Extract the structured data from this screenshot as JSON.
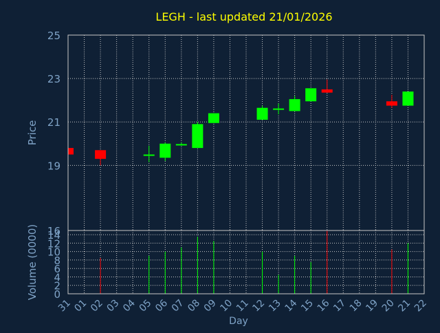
{
  "chart_data": {
    "type": "candlestick",
    "title": "LEGH - last updated 21/01/2026",
    "colors": {
      "background": "#0f2035",
      "title": "#ffff00",
      "axis_text": "#7fa3c7",
      "grid": "#c8c8c8",
      "up": "#00ff00",
      "down": "#ff0000"
    },
    "price_panel": {
      "ylabel": "Price",
      "ylim": [
        16,
        25
      ],
      "yticks": [
        "25",
        "23",
        "21",
        "19",
        "16"
      ],
      "ytick_values": [
        25,
        23,
        21,
        19,
        16
      ],
      "grid": true
    },
    "volume_panel": {
      "ylabel": "Volume (0000)",
      "ylim": [
        0,
        15
      ],
      "yticks": [
        "14",
        "12",
        "10",
        "8",
        "6",
        "4",
        "2",
        "0"
      ],
      "ytick_values": [
        14,
        12,
        10,
        8,
        6,
        4,
        2,
        0
      ],
      "grid": true
    },
    "xlabel": "Day",
    "x_categories": [
      "31",
      "01",
      "02",
      "03",
      "04",
      "05",
      "06",
      "07",
      "08",
      "09",
      "10",
      "11",
      "12",
      "13",
      "14",
      "15",
      "16",
      "17",
      "18",
      "19",
      "20",
      "21",
      "22"
    ],
    "candles": [
      {
        "day": "31",
        "idx": 0,
        "open": 19.8,
        "close": 19.5,
        "high": 19.8,
        "low": 19.5,
        "volume": 0
      },
      {
        "day": "02",
        "idx": 2,
        "open": 19.7,
        "close": 19.3,
        "high": 19.7,
        "low": 19.0,
        "volume": 8.5
      },
      {
        "day": "05",
        "idx": 5,
        "open": 19.45,
        "close": 19.5,
        "high": 19.9,
        "low": 19.15,
        "volume": 9.0
      },
      {
        "day": "06",
        "idx": 6,
        "open": 19.35,
        "close": 20.0,
        "high": 20.05,
        "low": 19.2,
        "volume": 10.0
      },
      {
        "day": "07",
        "idx": 7,
        "open": 19.95,
        "close": 19.98,
        "high": 20.05,
        "low": 19.9,
        "volume": 11.0
      },
      {
        "day": "08",
        "idx": 8,
        "open": 19.8,
        "close": 20.9,
        "high": 21.0,
        "low": 19.8,
        "volume": 13.5
      },
      {
        "day": "09",
        "idx": 9,
        "open": 20.95,
        "close": 21.4,
        "high": 21.4,
        "low": 20.95,
        "volume": 12.5
      },
      {
        "day": "12",
        "idx": 12,
        "open": 21.1,
        "close": 21.65,
        "high": 21.75,
        "low": 21.1,
        "volume": 10.0
      },
      {
        "day": "13",
        "idx": 13,
        "open": 21.6,
        "close": 21.62,
        "high": 21.85,
        "low": 21.35,
        "volume": 4.5
      },
      {
        "day": "14",
        "idx": 14,
        "open": 21.5,
        "close": 22.05,
        "high": 22.2,
        "low": 21.5,
        "volume": 9.0
      },
      {
        "day": "15",
        "idx": 15,
        "open": 21.95,
        "close": 22.55,
        "high": 22.55,
        "low": 21.95,
        "volume": 7.5
      },
      {
        "day": "16",
        "idx": 16,
        "open": 22.5,
        "close": 22.35,
        "high": 22.95,
        "low": 22.35,
        "volume": 15.0
      },
      {
        "day": "20",
        "idx": 20,
        "open": 21.95,
        "close": 21.75,
        "high": 22.25,
        "low": 21.65,
        "volume": 10.5
      },
      {
        "day": "21",
        "idx": 21,
        "open": 21.75,
        "close": 22.4,
        "high": 22.4,
        "low": 21.75,
        "volume": 12.0
      }
    ]
  }
}
